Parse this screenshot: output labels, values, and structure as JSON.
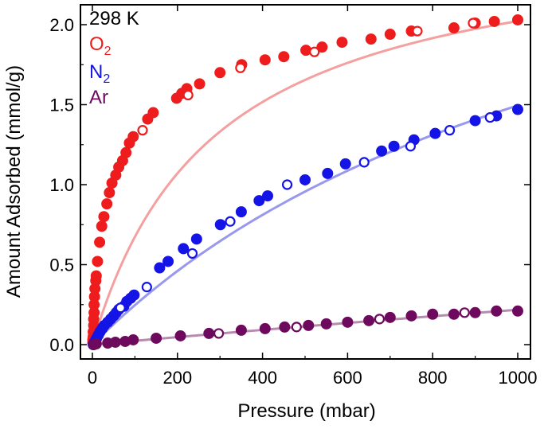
{
  "chart_data": {
    "type": "scatter",
    "annotation": "298 K",
    "xlabel": "Pressure (mbar)",
    "ylabel": "Amount Adsorbed (mmol/g)",
    "xlim": [
      -20,
      1020
    ],
    "ylim": [
      -0.05,
      2.13
    ],
    "x_ticks": [
      0,
      200,
      400,
      600,
      800,
      1000
    ],
    "x_tick_labels": [
      "0",
      "200",
      "400",
      "600",
      "800",
      "1000"
    ],
    "y_ticks": [
      0.0,
      0.5,
      1.0,
      1.5,
      2.0
    ],
    "y_tick_labels": [
      "0.0",
      "0.5",
      "1.0",
      "1.5",
      "2.0"
    ],
    "grid": false,
    "legend_position": "top-left",
    "series": [
      {
        "name": "O",
        "name_sub": "2",
        "color": "#ee1c1c",
        "line_color": "#f4a0a0",
        "fit": {
          "qsat": 2.6,
          "b": 0.0035
        },
        "filled": [
          [
            1,
            0.01
          ],
          [
            1,
            0.03
          ],
          [
            2,
            0.05
          ],
          [
            2,
            0.08
          ],
          [
            3,
            0.12
          ],
          [
            3,
            0.16
          ],
          [
            4,
            0.2
          ],
          [
            4,
            0.25
          ],
          [
            5,
            0.3
          ],
          [
            6,
            0.35
          ],
          [
            8,
            0.4
          ],
          [
            9,
            0.43
          ],
          [
            12,
            0.52
          ],
          [
            17,
            0.64
          ],
          [
            22,
            0.74
          ],
          [
            27,
            0.8
          ],
          [
            34,
            0.88
          ],
          [
            40,
            0.95
          ],
          [
            46,
            1.01
          ],
          [
            55,
            1.06
          ],
          [
            62,
            1.11
          ],
          [
            71,
            1.15
          ],
          [
            79,
            1.2
          ],
          [
            87,
            1.26
          ],
          [
            96,
            1.3
          ],
          [
            130,
            1.41
          ],
          [
            143,
            1.45
          ],
          [
            198,
            1.54
          ],
          [
            210,
            1.57
          ],
          [
            222,
            1.6
          ],
          [
            252,
            1.63
          ],
          [
            300,
            1.7
          ],
          [
            351,
            1.75
          ],
          [
            406,
            1.78
          ],
          [
            450,
            1.8
          ],
          [
            502,
            1.84
          ],
          [
            540,
            1.86
          ],
          [
            587,
            1.89
          ],
          [
            655,
            1.91
          ],
          [
            700,
            1.94
          ],
          [
            750,
            1.96
          ],
          [
            850,
            1.98
          ],
          [
            900,
            2.01
          ],
          [
            945,
            2.02
          ],
          [
            1000,
            2.03
          ]
        ],
        "open": [
          [
            118,
            1.34
          ],
          [
            225,
            1.56
          ],
          [
            348,
            1.73
          ],
          [
            522,
            1.83
          ],
          [
            764,
            1.96
          ],
          [
            895,
            2.01
          ]
        ]
      },
      {
        "name": "N",
        "name_sub": "2",
        "color": "#1414e6",
        "line_color": "#9898ee",
        "fit": {
          "qsat": 3.41,
          "b": 0.00078
        },
        "filled": [
          [
            2,
            0.0
          ],
          [
            4,
            0.01
          ],
          [
            6,
            0.02
          ],
          [
            10,
            0.04
          ],
          [
            14,
            0.06
          ],
          [
            18,
            0.08
          ],
          [
            23,
            0.1
          ],
          [
            28,
            0.12
          ],
          [
            36,
            0.14
          ],
          [
            43,
            0.16
          ],
          [
            50,
            0.18
          ],
          [
            56,
            0.2
          ],
          [
            62,
            0.22
          ],
          [
            74,
            0.24
          ],
          [
            81,
            0.27
          ],
          [
            90,
            0.29
          ],
          [
            98,
            0.31
          ],
          [
            158,
            0.48
          ],
          [
            178,
            0.52
          ],
          [
            214,
            0.6
          ],
          [
            245,
            0.66
          ],
          [
            301,
            0.75
          ],
          [
            350,
            0.83
          ],
          [
            392,
            0.9
          ],
          [
            412,
            0.93
          ],
          [
            500,
            1.03
          ],
          [
            553,
            1.07
          ],
          [
            595,
            1.13
          ],
          [
            680,
            1.21
          ],
          [
            709,
            1.24
          ],
          [
            756,
            1.28
          ],
          [
            806,
            1.32
          ],
          [
            900,
            1.4
          ],
          [
            950,
            1.43
          ],
          [
            1000,
            1.47
          ]
        ],
        "open": [
          [
            66,
            0.23
          ],
          [
            128,
            0.36
          ],
          [
            235,
            0.57
          ],
          [
            324,
            0.77
          ],
          [
            458,
            1.0
          ],
          [
            639,
            1.14
          ],
          [
            748,
            1.24
          ],
          [
            840,
            1.34
          ],
          [
            935,
            1.42
          ]
        ]
      },
      {
        "name": "Ar",
        "name_sub": "",
        "color": "#6d0a5e",
        "line_color": "#b88ab0",
        "fit": {
          "qsat": 2.43,
          "b": 9.85e-05
        },
        "filled": [
          [
            3,
            0.0
          ],
          [
            9,
            0.005
          ],
          [
            36,
            0.01
          ],
          [
            54,
            0.015
          ],
          [
            77,
            0.02
          ],
          [
            96,
            0.03
          ],
          [
            150,
            0.04
          ],
          [
            207,
            0.055
          ],
          [
            274,
            0.07
          ],
          [
            350,
            0.09
          ],
          [
            406,
            0.1
          ],
          [
            452,
            0.11
          ],
          [
            508,
            0.12
          ],
          [
            550,
            0.13
          ],
          [
            600,
            0.14
          ],
          [
            650,
            0.15
          ],
          [
            700,
            0.17
          ],
          [
            750,
            0.18
          ],
          [
            800,
            0.19
          ],
          [
            850,
            0.19
          ],
          [
            900,
            0.2
          ],
          [
            950,
            0.21
          ],
          [
            1000,
            0.21
          ]
        ],
        "open": [
          [
            297,
            0.07
          ],
          [
            480,
            0.11
          ],
          [
            675,
            0.16
          ],
          [
            875,
            0.2
          ]
        ]
      }
    ]
  }
}
